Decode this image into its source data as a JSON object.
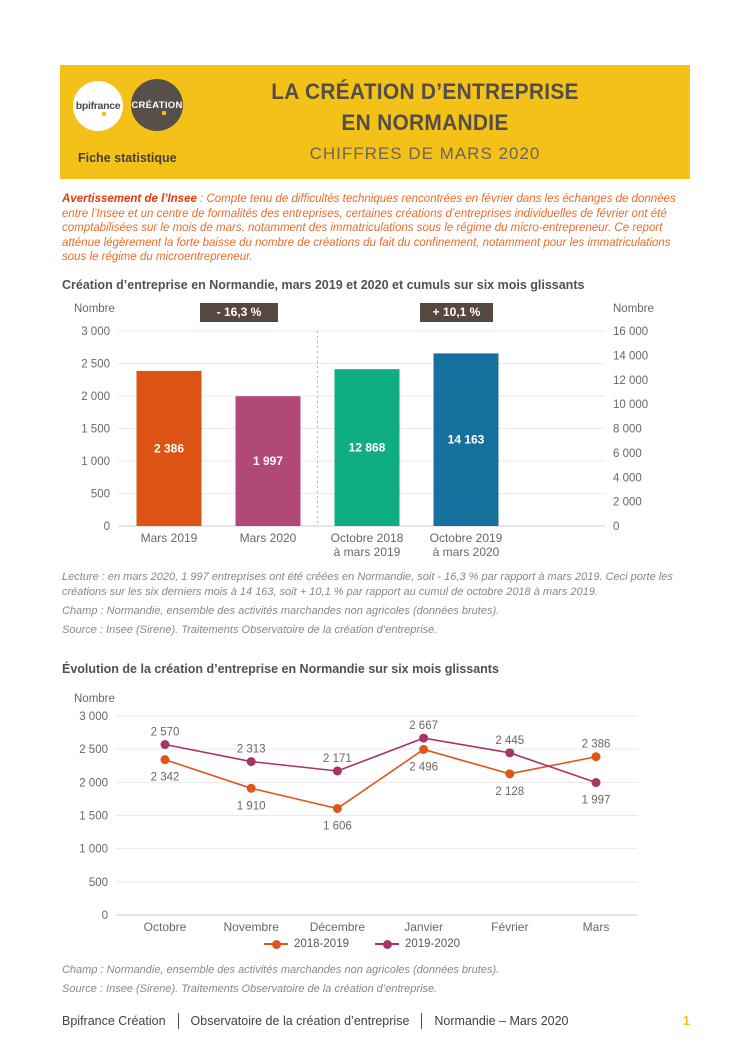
{
  "header": {
    "logo_primary": "bpifrance",
    "logo_secondary": "CRÉATION",
    "tagline": "Fiche statistique",
    "title_line1": "LA CRÉATION D’ENTREPRISE",
    "title_line2": "EN NORMANDIE",
    "subtitle": "CHIFFRES DE MARS 2020"
  },
  "notice": {
    "lead": "Avertissement de l’Insee",
    "body": " : Compte tenu de difficultés techniques rencontrées en février dans les échanges de données entre l’Insee et un centre de formalités des entreprises, certaines créations d’entreprises individuelles de février ont été comptabilisées sur le mois de mars, notamment des immatriculations sous le régime du micro-entrepreneur. Ce report atténue légèrement la forte baisse du nombre de créations du fait du confinement, notamment pour les immatriculations sous le régime du microentrepreneur."
  },
  "bar_section": {
    "notes": [
      "Lecture : en mars 2020, 1 997 entreprises ont été créées en Normandie, soit - 16,3 % par rapport à mars 2019. Ceci porte les créations sur les six derniers mois à 14 163, soit + 10,1 % par rapport au cumul de octobre 2018 à mars 2019.",
      "Champ : Normandie, ensemble des activités marchandes non agricoles (données brutes).",
      "Source : Insee (Sirene). Traitements Observatoire de la création d’entreprise."
    ]
  },
  "line_section": {
    "notes": [
      "Champ : Normandie, ensemble des activités marchandes non agricoles (données brutes).",
      "Source : Insee (Sirene). Traitements Observatoire de la création d’entreprise."
    ]
  },
  "footer": {
    "items": [
      "Bpifrance Création",
      "Observatoire de la création d’entreprise",
      "Normandie – Mars 2020"
    ],
    "page": "1"
  },
  "chart_data": [
    {
      "type": "bar",
      "title": "Création d’entreprise en Normandie, mars 2019 et 2020 et cumuls sur six mois glissants",
      "unit_label_left": "Nombre",
      "unit_label_right": "Nombre",
      "badges": [
        {
          "label": "- 16,3 %"
        },
        {
          "label": "+ 10,1 %"
        }
      ],
      "categories": [
        "Mars 2019",
        "Mars 2020",
        "Octobre 2018\nà mars 2019",
        "Octobre 2019\nà mars 2020"
      ],
      "values": [
        2386,
        1997,
        12868,
        14163
      ],
      "value_labels": [
        "2 386",
        "1 997",
        "12 868",
        "14 163"
      ],
      "bar_colors": [
        "#DC5315",
        "#B04878",
        "#0FAE82",
        "#16719E"
      ],
      "axis_side": [
        "left",
        "left",
        "right",
        "right"
      ],
      "ylim_left": [
        0,
        3000
      ],
      "ylim_right": [
        0,
        16000
      ],
      "yticks_left": [
        "3 000",
        "2 500",
        "2 000",
        "1 500",
        "1 000",
        "500",
        "0"
      ],
      "yticks_right": [
        "16 000",
        "14 000",
        "12 000",
        "10 000",
        "8 000",
        "6 000",
        "4 000",
        "2 000",
        "0"
      ],
      "grid": true
    },
    {
      "type": "line",
      "title": "Évolution de la création d’entreprise en Normandie sur six mois glissants",
      "unit_label": "Nombre",
      "categories": [
        "Octobre",
        "Novembre",
        "Décembre",
        "Janvier",
        "Février",
        "Mars"
      ],
      "series": [
        {
          "name": "2018-2019",
          "color": "#E0561A",
          "values": [
            2342,
            1910,
            1606,
            2496,
            2128,
            2386
          ],
          "labels": [
            "2 342",
            "1 910",
            "1 606",
            "2 496",
            "2 128",
            "2 386"
          ],
          "label_side": [
            "below",
            "below",
            "below",
            "below",
            "below",
            "above"
          ]
        },
        {
          "name": "2019-2020",
          "color": "#A73468",
          "values": [
            2570,
            2313,
            2171,
            2667,
            2445,
            1997
          ],
          "labels": [
            "2 570",
            "2 313",
            "2 171",
            "2 667",
            "2 445",
            "1 997"
          ],
          "label_side": [
            "above",
            "above",
            "above",
            "above",
            "above",
            "below"
          ]
        }
      ],
      "ylim": [
        0,
        3000
      ],
      "yticks": [
        "3 000",
        "2 500",
        "2 000",
        "1 500",
        "1 000",
        "500",
        "0"
      ],
      "grid": true,
      "legend_position": "bottom"
    }
  ]
}
